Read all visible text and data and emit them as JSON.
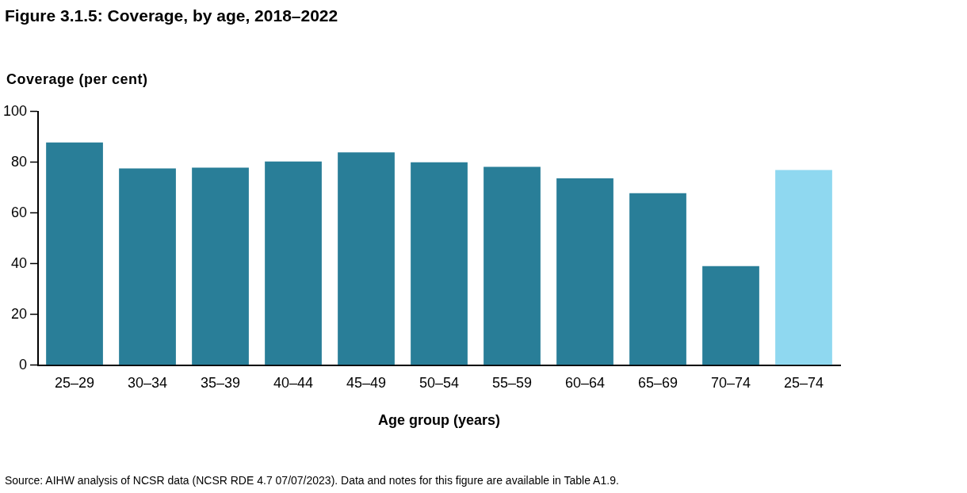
{
  "chart_data": {
    "type": "bar",
    "title": "Figure 3.1.5: Coverage, by age, 2018–2022",
    "ylabel": "Coverage (per cent)",
    "xlabel": "Age group (years)",
    "categories": [
      "25–29",
      "30–34",
      "35–39",
      "40–44",
      "45–49",
      "50–54",
      "55–59",
      "60–64",
      "65–69",
      "70–74",
      "25–74"
    ],
    "values": [
      87.8,
      77.6,
      77.9,
      80.3,
      83.9,
      80.0,
      78.2,
      73.7,
      67.8,
      39.1,
      77.0
    ],
    "colors": [
      "#297e98",
      "#297e98",
      "#297e98",
      "#297e98",
      "#297e98",
      "#297e98",
      "#297e98",
      "#297e98",
      "#297e98",
      "#297e98",
      "#8fd8f0"
    ],
    "ylim": [
      0,
      100
    ],
    "yticks": [
      0,
      20,
      40,
      60,
      80,
      100
    ],
    "grid": false,
    "legend": false,
    "annotations": [
      "Source: AIHW analysis of NCSR data (NCSR RDE 4.7 07/07/2023). Data and notes for this figure are available in Table A1.9."
    ]
  }
}
